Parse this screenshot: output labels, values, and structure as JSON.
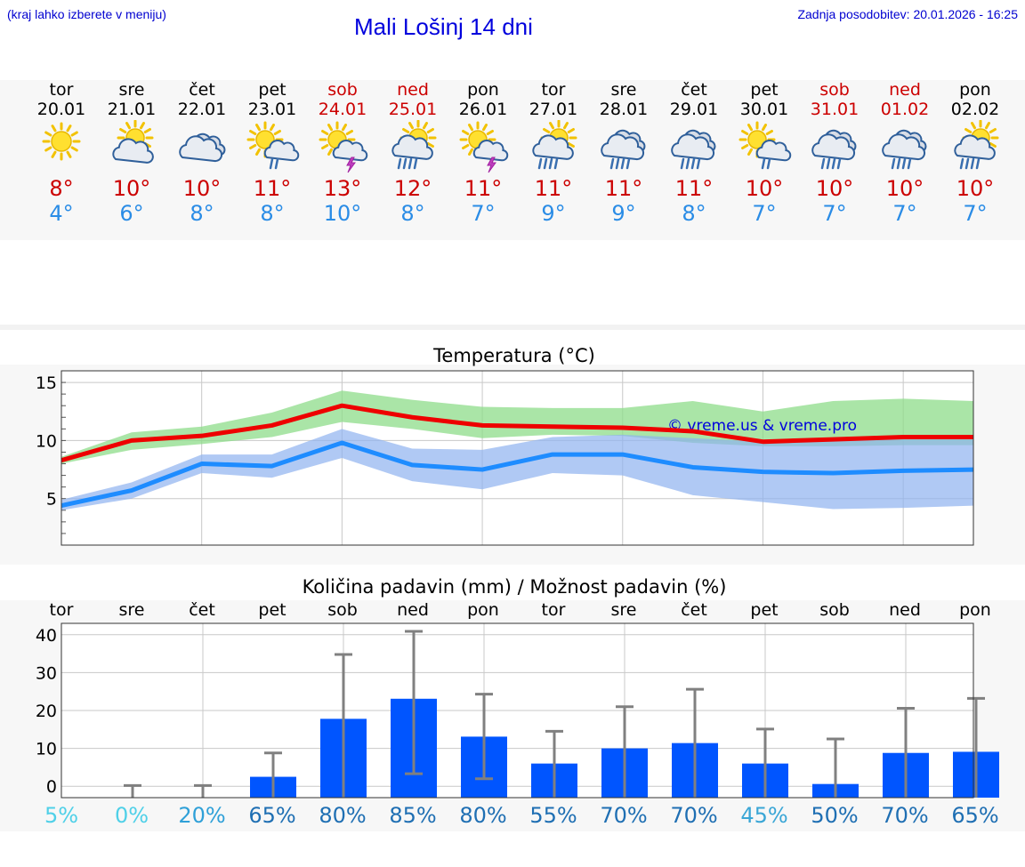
{
  "header": {
    "hint": "(kraj lahko izberete v meniju)",
    "title": "Mali Lošinj 14 dni",
    "updated": "Zadnja posodobitev: 20.01.2026 - 16:25"
  },
  "days": [
    {
      "name": "tor",
      "date": "20.01",
      "weekend": false,
      "icon": "sunny-icon",
      "max": "8°",
      "min": "4°"
    },
    {
      "name": "sre",
      "date": "21.01",
      "weekend": false,
      "icon": "sun-cloud-icon",
      "max": "10°",
      "min": "6°"
    },
    {
      "name": "čet",
      "date": "22.01",
      "weekend": false,
      "icon": "cloudy-icon",
      "max": "10°",
      "min": "8°"
    },
    {
      "name": "pet",
      "date": "23.01",
      "weekend": false,
      "icon": "sun-rain-icon",
      "max": "11°",
      "min": "8°"
    },
    {
      "name": "sob",
      "date": "24.01",
      "weekend": true,
      "icon": "sun-thunder-icon",
      "max": "13°",
      "min": "10°"
    },
    {
      "name": "ned",
      "date": "25.01",
      "weekend": true,
      "icon": "sun-heavy-rain-icon",
      "max": "12°",
      "min": "8°"
    },
    {
      "name": "pon",
      "date": "26.01",
      "weekend": false,
      "icon": "sun-thunder-icon",
      "max": "11°",
      "min": "7°"
    },
    {
      "name": "tor",
      "date": "27.01",
      "weekend": false,
      "icon": "sun-heavy-rain-icon",
      "max": "11°",
      "min": "9°"
    },
    {
      "name": "sre",
      "date": "28.01",
      "weekend": false,
      "icon": "cloud-rain-icon",
      "max": "11°",
      "min": "9°"
    },
    {
      "name": "čet",
      "date": "29.01",
      "weekend": false,
      "icon": "cloud-rain-icon",
      "max": "11°",
      "min": "8°"
    },
    {
      "name": "pet",
      "date": "30.01",
      "weekend": false,
      "icon": "sun-rain-icon",
      "max": "10°",
      "min": "7°"
    },
    {
      "name": "sob",
      "date": "31.01",
      "weekend": true,
      "icon": "cloud-rain-icon",
      "max": "10°",
      "min": "7°"
    },
    {
      "name": "ned",
      "date": "01.02",
      "weekend": true,
      "icon": "cloud-rain-icon",
      "max": "10°",
      "min": "7°"
    },
    {
      "name": "pon",
      "date": "02.02",
      "weekend": false,
      "icon": "sun-heavy-rain-icon",
      "max": "10°",
      "min": "7°"
    }
  ],
  "colors": {
    "max_line": "#ee0000",
    "min_line": "#1e8cff",
    "max_band": "#8ddc8a",
    "min_band": "#8fb2f0",
    "bar": "#0055ff",
    "error": "#808080",
    "prob_dark": "#1f6fb3",
    "prob_light": "#4fc3e0"
  },
  "chart_data": [
    {
      "type": "line",
      "title": "Temperatura (°C)",
      "watermark": "© vreme.us & vreme.pro",
      "ylim": [
        1,
        16
      ],
      "yticks": [
        "15",
        "10",
        "5"
      ],
      "ytick_values": [
        15,
        10,
        5
      ],
      "x": [
        0,
        1,
        2,
        3,
        4,
        5,
        6,
        7,
        8,
        9,
        10,
        11,
        12,
        13
      ],
      "series": [
        {
          "name": "max",
          "values": [
            8.3,
            10.0,
            10.4,
            11.3,
            13.0,
            12.0,
            11.3,
            11.2,
            11.1,
            10.8,
            9.9,
            10.1,
            10.3,
            10.3
          ],
          "band_low": [
            8.0,
            9.2,
            9.7,
            10.3,
            11.6,
            11.0,
            10.2,
            10.5,
            10.4,
            9.8,
            9.5,
            9.5,
            9.6,
            9.6
          ],
          "band_high": [
            8.6,
            10.7,
            11.2,
            12.4,
            14.3,
            13.5,
            12.9,
            12.8,
            12.8,
            13.4,
            12.5,
            13.4,
            13.6,
            13.4
          ]
        },
        {
          "name": "min",
          "values": [
            4.4,
            5.7,
            8.0,
            7.8,
            9.8,
            7.9,
            7.5,
            8.8,
            8.8,
            7.7,
            7.3,
            7.2,
            7.4,
            7.5
          ],
          "band_low": [
            4.0,
            5.0,
            7.2,
            6.8,
            8.5,
            6.5,
            5.8,
            7.2,
            7.0,
            5.3,
            4.7,
            4.1,
            4.2,
            4.4
          ],
          "band_high": [
            4.9,
            6.4,
            8.8,
            8.8,
            11.0,
            9.3,
            9.2,
            10.3,
            10.5,
            10.2,
            9.9,
            10.0,
            10.1,
            10.1
          ]
        }
      ]
    },
    {
      "type": "bar",
      "title": "Količina padavin (mm) / Možnost padavin (%)",
      "categories": [
        "tor",
        "sre",
        "čet",
        "pet",
        "sob",
        "ned",
        "pon",
        "tor",
        "sre",
        "čet",
        "pet",
        "sob",
        "ned",
        "pon"
      ],
      "ylim": [
        -3,
        43
      ],
      "yticks": [
        "40",
        "30",
        "20",
        "10",
        "0"
      ],
      "ytick_values": [
        40,
        30,
        20,
        10,
        0
      ],
      "values": [
        0,
        0,
        0,
        2.5,
        17.8,
        23.1,
        13.1,
        6.0,
        10.0,
        11.4,
        6.0,
        0.6,
        8.8,
        9.1
      ],
      "error_high": [
        0,
        0.2,
        0.2,
        8.8,
        34.8,
        40.9,
        24.3,
        14.5,
        21.0,
        25.6,
        15.1,
        12.5,
        20.6,
        23.2
      ],
      "error_low": [
        0,
        0,
        0,
        0,
        0,
        3.3,
        2.0,
        0,
        0,
        0,
        0,
        0,
        0,
        0
      ],
      "probability": [
        "5%",
        "0%",
        "20%",
        "65%",
        "80%",
        "85%",
        "80%",
        "55%",
        "70%",
        "70%",
        "45%",
        "50%",
        "70%",
        "65%"
      ],
      "probability_values": [
        5,
        0,
        20,
        65,
        80,
        85,
        80,
        55,
        70,
        70,
        45,
        50,
        70,
        65
      ]
    }
  ]
}
